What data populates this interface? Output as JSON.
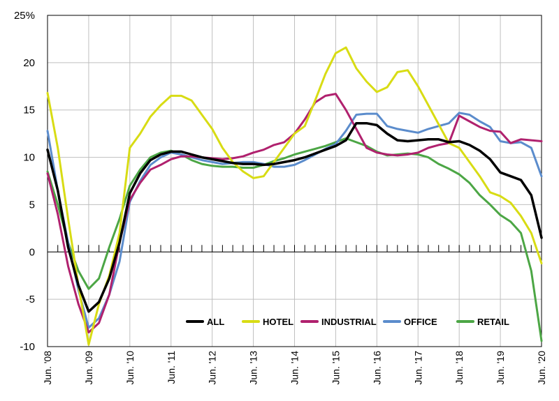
{
  "chart_data": {
    "type": "line",
    "title": "",
    "xlabel": "",
    "ylabel": "",
    "ylim": [
      -10,
      25
    ],
    "yticks": [
      25,
      20,
      15,
      10,
      5,
      0,
      -5,
      -10
    ],
    "ytick_labels": [
      "25%",
      "20",
      "15",
      "10",
      "5",
      "0",
      "-5",
      "-10"
    ],
    "xlim": [
      2008.5,
      2020.5
    ],
    "xticks": [
      2008.5,
      2009.5,
      2010.5,
      2011.5,
      2012.5,
      2013.5,
      2014.5,
      2015.5,
      2016.5,
      2017.5,
      2018.5,
      2019.5,
      2020.5
    ],
    "xtick_labels": [
      "Jun. '08",
      "Jun. '09",
      "Jun. '10",
      "Jun. '11",
      "Jun. '12",
      "Jun. '13",
      "Jun. '14",
      "Jun. '15",
      "Jun. '16",
      "Jun. '17",
      "Jun. '18",
      "Jun. '19",
      "Jun. '20"
    ],
    "grid": true,
    "legend_position": "bottom-right",
    "series": [
      {
        "name": "ALL",
        "color": "#000000",
        "x": [
          2008.5,
          2008.75,
          2009.0,
          2009.25,
          2009.5,
          2009.75,
          2010.0,
          2010.25,
          2010.5,
          2010.75,
          2011.0,
          2011.25,
          2011.5,
          2011.75,
          2012.0,
          2012.25,
          2012.5,
          2012.75,
          2013.0,
          2013.25,
          2013.5,
          2013.75,
          2014.0,
          2014.25,
          2014.5,
          2014.75,
          2015.0,
          2015.25,
          2015.5,
          2015.75,
          2016.0,
          2016.25,
          2016.5,
          2016.75,
          2017.0,
          2017.25,
          2017.5,
          2017.75,
          2018.0,
          2018.25,
          2018.5,
          2018.75,
          2019.0,
          2019.25,
          2019.5,
          2019.75,
          2020.0,
          2020.25,
          2020.5
        ],
        "y": [
          10.8,
          6.5,
          0.5,
          -3.5,
          -6.3,
          -5.3,
          -2.8,
          1.0,
          6.2,
          8.3,
          9.7,
          10.3,
          10.6,
          10.6,
          10.3,
          10.0,
          9.8,
          9.6,
          9.4,
          9.3,
          9.3,
          9.2,
          9.3,
          9.5,
          9.7,
          10.0,
          10.4,
          10.8,
          11.2,
          11.8,
          13.6,
          13.6,
          13.4,
          12.5,
          11.8,
          11.7,
          11.8,
          11.9,
          11.9,
          11.6,
          11.7,
          11.3,
          10.7,
          9.8,
          8.4,
          8.0,
          7.6,
          6.0,
          1.5
        ]
      },
      {
        "name": "HOTEL",
        "color": "#d8dc14",
        "x": [
          2008.5,
          2008.75,
          2009.0,
          2009.25,
          2009.5,
          2009.75,
          2010.0,
          2010.25,
          2010.5,
          2010.75,
          2011.0,
          2011.25,
          2011.5,
          2011.75,
          2012.0,
          2012.25,
          2012.5,
          2012.75,
          2013.0,
          2013.25,
          2013.5,
          2013.75,
          2014.0,
          2014.25,
          2014.5,
          2014.75,
          2015.0,
          2015.25,
          2015.5,
          2015.75,
          2016.0,
          2016.25,
          2016.5,
          2016.75,
          2017.0,
          2017.25,
          2017.5,
          2017.75,
          2018.0,
          2018.25,
          2018.5,
          2018.75,
          2019.0,
          2019.25,
          2019.5,
          2019.75,
          2020.0,
          2020.25,
          2020.5
        ],
        "y": [
          16.8,
          11.0,
          3.5,
          -3.5,
          -9.8,
          -5.5,
          -2.5,
          2.0,
          11.0,
          12.5,
          14.3,
          15.5,
          16.5,
          16.5,
          16.0,
          14.5,
          13.0,
          11.0,
          9.5,
          8.5,
          7.8,
          8.0,
          9.5,
          11.0,
          12.5,
          13.3,
          16.0,
          18.8,
          21.0,
          21.6,
          19.4,
          18.0,
          16.9,
          17.4,
          19.0,
          19.2,
          17.5,
          15.5,
          13.5,
          11.5,
          11.0,
          9.5,
          8.0,
          6.3,
          5.9,
          5.2,
          3.8,
          2.0,
          -1.2
        ]
      },
      {
        "name": "INDUSTRIAL",
        "color": "#b0216e",
        "x": [
          2008.5,
          2008.75,
          2009.0,
          2009.25,
          2009.5,
          2009.75,
          2010.0,
          2010.25,
          2010.5,
          2010.75,
          2011.0,
          2011.25,
          2011.5,
          2011.75,
          2012.0,
          2012.25,
          2012.5,
          2012.75,
          2013.0,
          2013.25,
          2013.5,
          2013.75,
          2014.0,
          2014.25,
          2014.5,
          2014.75,
          2015.0,
          2015.25,
          2015.5,
          2015.75,
          2016.0,
          2016.25,
          2016.5,
          2016.75,
          2017.0,
          2017.25,
          2017.5,
          2017.75,
          2018.0,
          2018.25,
          2018.5,
          2018.75,
          2019.0,
          2019.25,
          2019.5,
          2019.75,
          2020.0,
          2020.25,
          2020.5
        ],
        "y": [
          8.3,
          4.0,
          -1.5,
          -5.5,
          -8.5,
          -7.5,
          -4.5,
          1.0,
          5.5,
          7.3,
          8.7,
          9.2,
          9.8,
          10.1,
          10.1,
          10.0,
          9.9,
          9.8,
          9.9,
          10.1,
          10.5,
          10.8,
          11.3,
          11.6,
          12.5,
          14.0,
          15.8,
          16.5,
          16.7,
          15.0,
          13.0,
          11.0,
          10.5,
          10.3,
          10.2,
          10.3,
          10.5,
          11.0,
          11.3,
          11.5,
          14.4,
          13.8,
          13.2,
          12.8,
          12.7,
          11.5,
          11.9,
          11.8,
          11.7
        ]
      },
      {
        "name": "OFFICE",
        "color": "#5b8ccc",
        "x": [
          2008.5,
          2008.75,
          2009.0,
          2009.25,
          2009.5,
          2009.75,
          2010.0,
          2010.25,
          2010.5,
          2010.75,
          2011.0,
          2011.25,
          2011.5,
          2011.75,
          2012.0,
          2012.25,
          2012.5,
          2012.75,
          2013.0,
          2013.25,
          2013.5,
          2013.75,
          2014.0,
          2014.25,
          2014.5,
          2014.75,
          2015.0,
          2015.25,
          2015.5,
          2015.75,
          2016.0,
          2016.25,
          2016.5,
          2016.75,
          2017.0,
          2017.25,
          2017.5,
          2017.75,
          2018.0,
          2018.25,
          2018.5,
          2018.75,
          2019.0,
          2019.25,
          2019.5,
          2019.75,
          2020.0,
          2020.25,
          2020.5
        ],
        "y": [
          12.8,
          6.5,
          1.0,
          -4.0,
          -8.0,
          -7.0,
          -4.5,
          -1.0,
          5.3,
          7.5,
          9.2,
          10.0,
          10.5,
          10.3,
          10.0,
          9.7,
          9.5,
          9.3,
          9.4,
          9.5,
          9.5,
          9.3,
          9.0,
          9.0,
          9.2,
          9.7,
          10.3,
          10.9,
          11.4,
          12.8,
          14.5,
          14.6,
          14.6,
          13.3,
          13.0,
          12.8,
          12.6,
          13.0,
          13.3,
          13.6,
          14.7,
          14.5,
          13.8,
          13.2,
          11.7,
          11.5,
          11.6,
          11.0,
          8.0
        ]
      },
      {
        "name": "RETAIL",
        "color": "#4ca645",
        "x": [
          2008.5,
          2008.75,
          2009.0,
          2009.25,
          2009.5,
          2009.75,
          2010.0,
          2010.25,
          2010.5,
          2010.75,
          2011.0,
          2011.25,
          2011.5,
          2011.75,
          2012.0,
          2012.25,
          2012.5,
          2012.75,
          2013.0,
          2013.25,
          2013.5,
          2013.75,
          2014.0,
          2014.25,
          2014.5,
          2014.75,
          2015.0,
          2015.25,
          2015.5,
          2015.75,
          2016.0,
          2016.25,
          2016.5,
          2016.75,
          2017.0,
          2017.25,
          2017.5,
          2017.75,
          2018.0,
          2018.25,
          2018.5,
          2018.75,
          2019.0,
          2019.25,
          2019.5,
          2019.75,
          2020.0,
          2020.25,
          2020.5
        ],
        "y": [
          8.5,
          5.0,
          1.0,
          -2.0,
          -3.9,
          -2.8,
          0.5,
          3.5,
          7.0,
          8.7,
          10.0,
          10.5,
          10.7,
          10.3,
          9.7,
          9.3,
          9.1,
          9.0,
          9.0,
          8.9,
          8.9,
          9.2,
          9.6,
          9.9,
          10.3,
          10.6,
          10.9,
          11.2,
          11.6,
          12.0,
          11.6,
          11.2,
          10.6,
          10.2,
          10.3,
          10.4,
          10.3,
          10.0,
          9.3,
          8.8,
          8.2,
          7.3,
          6.0,
          5.0,
          3.9,
          3.2,
          2.0,
          -2.0,
          -9.4
        ]
      }
    ]
  }
}
